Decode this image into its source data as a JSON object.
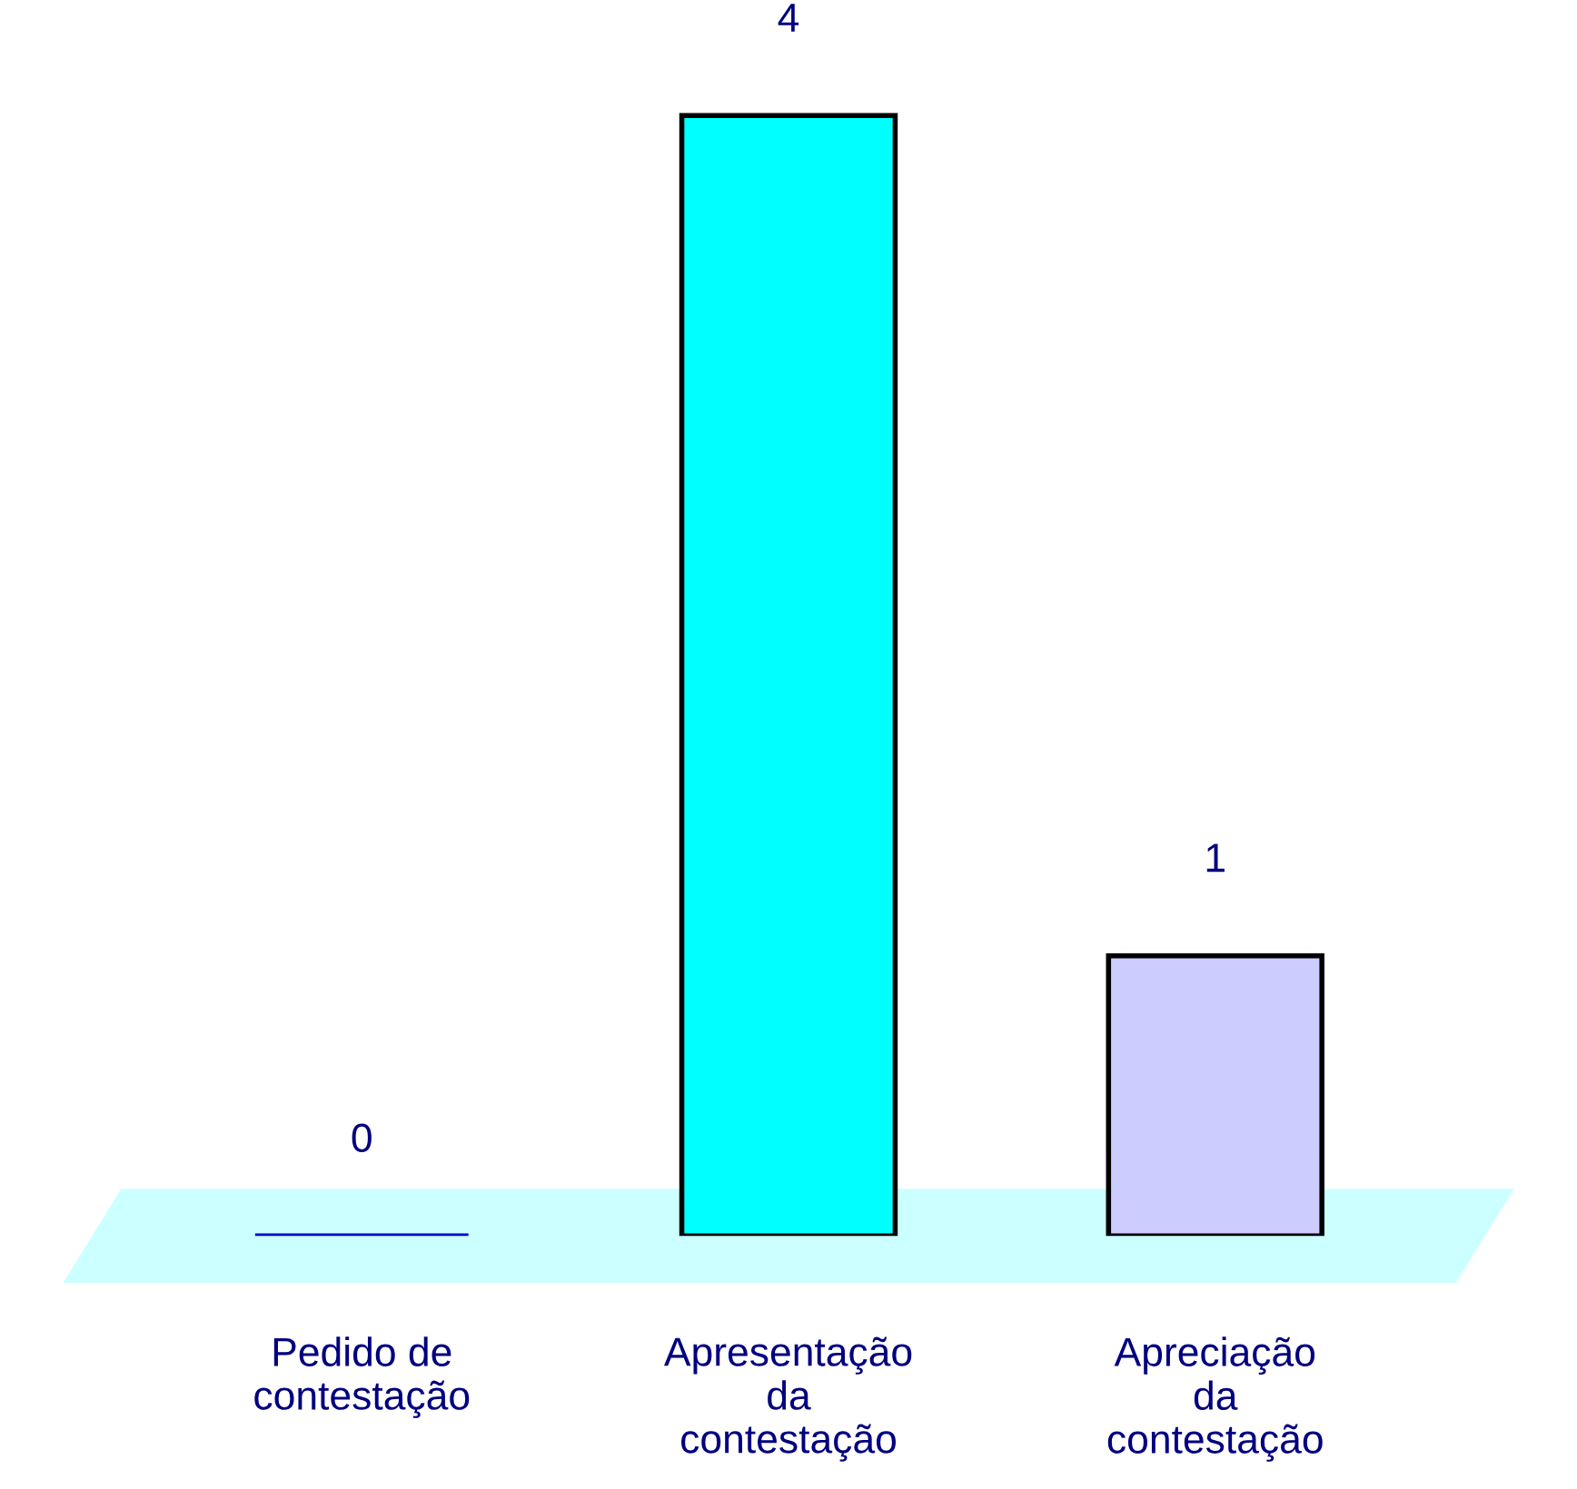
{
  "chart_data": {
    "type": "bar",
    "categories": [
      "Pedido de\ncontestação",
      "Apresentação\nda\ncontestação",
      "Apreciação\nda\ncontestação"
    ],
    "values": [
      0,
      4,
      1
    ],
    "colors": [
      "#0000cc",
      "#00ffff",
      "#ccccff"
    ],
    "data_labels": true
  }
}
